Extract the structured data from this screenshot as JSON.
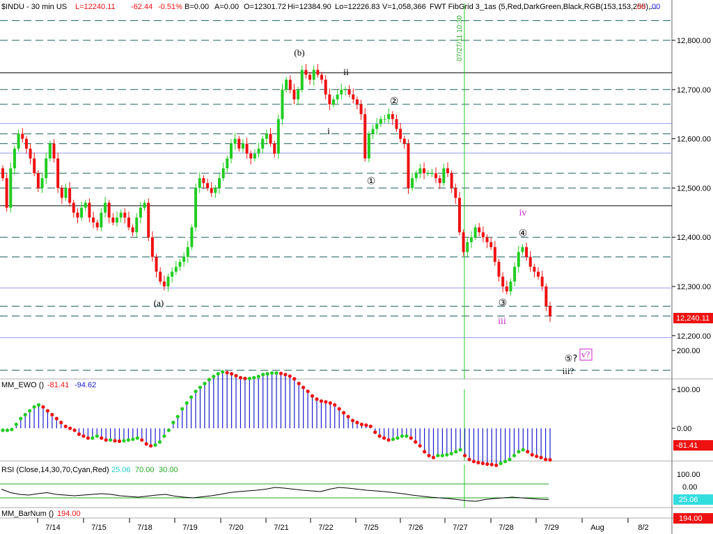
{
  "header": {
    "symbol": "$INDU - 30 min  US",
    "last": "L=12240.11",
    "change": "-62.44",
    "change_pct": "-0.51%",
    "bid": "B=0.00",
    "ask": "A=0.00",
    "open": "O=12301.72",
    "high": "Hi=12384.90",
    "low": "Lo=12226.83",
    "volume": "V=1,058,366",
    "study": "FWT FibGrid 3_1as (5,Red,DarkGreen,Black,RGB(153,153,255),...",
    "study_val1": ".00",
    "study_val2": ".00"
  },
  "colors": {
    "up": "#22cc22",
    "down": "#ee1111",
    "ewo_bar": "#1a1acc",
    "fib_dash": "#1f5f5f",
    "fib_line": "#9999ff",
    "cursor": "#22cc22",
    "price_tag": "#ee1111",
    "rsi_zero_line": "#22aa22"
  },
  "cursor_label": "07/27/11 10:30",
  "price_axis": {
    "ticks": [
      "12,800.00",
      "12,700.00",
      "12,600.00",
      "12,500.00",
      "12,400.00",
      "12,300.00",
      "12,200.00"
    ],
    "current": "12,240.11"
  },
  "ewo": {
    "label": "MM_EWO ()",
    "v1": "-81.41",
    "v2": "-94.62",
    "ticks": [
      "200.00",
      "100.00",
      "0.00"
    ],
    "current": "-81.41"
  },
  "rsi": {
    "label": "RSI (Close,14,30,70,Cyan,Red)",
    "v1": "25.06",
    "v2": "70.00",
    "v3": "30.00",
    "ticks": [
      "100.00",
      "0.00"
    ],
    "current": "25.06"
  },
  "barnum": {
    "label": "MM_BarNum ()",
    "v1": "194.00",
    "current": "194.00"
  },
  "date_axis": [
    "7/14",
    "7/15",
    "7/18",
    "7/19",
    "7/20",
    "7/21",
    "7/22",
    "7/25",
    "7/26",
    "7/27",
    "7/28",
    "7/29",
    "Aug",
    "8/2"
  ],
  "wave_labels": {
    "b": "(b)",
    "a": "(a)",
    "ii": "ii",
    "i": "i",
    "w1": "①",
    "w2": "②",
    "w3": "③",
    "w4": "④",
    "w5": "⑤?",
    "iii": "iii",
    "iv": "iv",
    "v": "v?",
    "iii_q": "iii?"
  },
  "chart_data": {
    "type": "candlestick",
    "title": "$INDU - 30 min",
    "ylim": [
      12120,
      12850
    ],
    "y_ticks": [
      12200,
      12300,
      12400,
      12500,
      12600,
      12700,
      12800
    ],
    "fib_dashed_levels": [
      12840,
      12800,
      12700,
      12670,
      12610,
      12590,
      12530,
      12500,
      12400,
      12360,
      12260,
      12240,
      12130
    ],
    "fib_solid_levels": [
      12734,
      12464
    ],
    "fib_blue_levels": [
      12631,
      12571,
      12297,
      12196
    ],
    "close_path": [
      12520,
      12460,
      12540,
      12580,
      12610,
      12600,
      12580,
      12560,
      12530,
      12500,
      12520,
      12560,
      12590,
      12560,
      12500,
      12480,
      12500,
      12470,
      12450,
      12440,
      12460,
      12470,
      12440,
      12430,
      12420,
      12450,
      12470,
      12440,
      12430,
      12440,
      12450,
      12440,
      12420,
      12410,
      12440,
      12460,
      12470,
      12400,
      12360,
      12330,
      12310,
      12300,
      12320,
      12330,
      12340,
      12350,
      12360,
      12380,
      12420,
      12500,
      12520,
      12510,
      12500,
      12490,
      12500,
      12520,
      12540,
      12560,
      12590,
      12600,
      12580,
      12590,
      12570,
      12560,
      12570,
      12580,
      12600,
      12610,
      12590,
      12570,
      12640,
      12700,
      12720,
      12700,
      12680,
      12700,
      12740,
      12730,
      12720,
      12740,
      12730,
      12720,
      12690,
      12670,
      12680,
      12690,
      12700,
      12700,
      12690,
      12680,
      12670,
      12650,
      12560,
      12610,
      12620,
      12630,
      12640,
      12640,
      12650,
      12640,
      12620,
      12600,
      12590,
      12500,
      12520,
      12530,
      12540,
      12530,
      12530,
      12530,
      12520,
      12510,
      12540,
      12530,
      12500,
      12480,
      12410,
      12370,
      12390,
      12400,
      12420,
      12410,
      12400,
      12390,
      12380,
      12350,
      12320,
      12300,
      12290,
      12310,
      12340,
      12370,
      12380,
      12360,
      12340,
      12330,
      12320,
      12300,
      12260,
      12240
    ],
    "ewo_values": [
      -5,
      -5,
      -3,
      10,
      25,
      35,
      45,
      55,
      60,
      55,
      45,
      35,
      25,
      15,
      5,
      0,
      -5,
      -15,
      -20,
      -25,
      -25,
      -20,
      -25,
      -30,
      -30,
      -32,
      -33,
      -32,
      -30,
      -28,
      -25,
      -30,
      -40,
      -45,
      -43,
      -35,
      -20,
      -5,
      15,
      30,
      50,
      65,
      80,
      95,
      105,
      115,
      125,
      133,
      140,
      145,
      143,
      140,
      135,
      130,
      128,
      128,
      130,
      133,
      138,
      140,
      142,
      142,
      141,
      138,
      134,
      127,
      115,
      105,
      95,
      83,
      75,
      70,
      68,
      65,
      60,
      50,
      40,
      30,
      20,
      15,
      10,
      8,
      5,
      -10,
      -20,
      -25,
      -30,
      -28,
      -25,
      -20,
      -20,
      -25,
      -35,
      -45,
      -60,
      -70,
      -75,
      -70,
      -70,
      -68,
      -65,
      -60,
      -55,
      -70,
      -80,
      -85,
      -88,
      -90,
      -92,
      -93,
      -95,
      -90,
      -85,
      -80,
      -70,
      -60,
      -55,
      -60,
      -68,
      -72,
      -75,
      -80,
      -81
    ],
    "rsi_values": [
      55,
      45,
      40,
      38,
      42,
      45,
      40,
      38,
      36,
      38,
      40,
      42,
      40,
      36,
      34,
      32,
      35,
      38,
      40,
      35,
      32,
      30,
      33,
      36,
      40,
      45,
      48,
      50,
      52,
      55,
      60,
      58,
      55,
      52,
      50,
      48,
      55,
      60,
      58,
      55,
      52,
      50,
      48,
      45,
      42,
      38,
      35,
      32,
      30,
      28,
      25,
      22,
      20,
      25,
      28,
      30,
      32,
      30,
      28,
      26,
      25
    ]
  }
}
